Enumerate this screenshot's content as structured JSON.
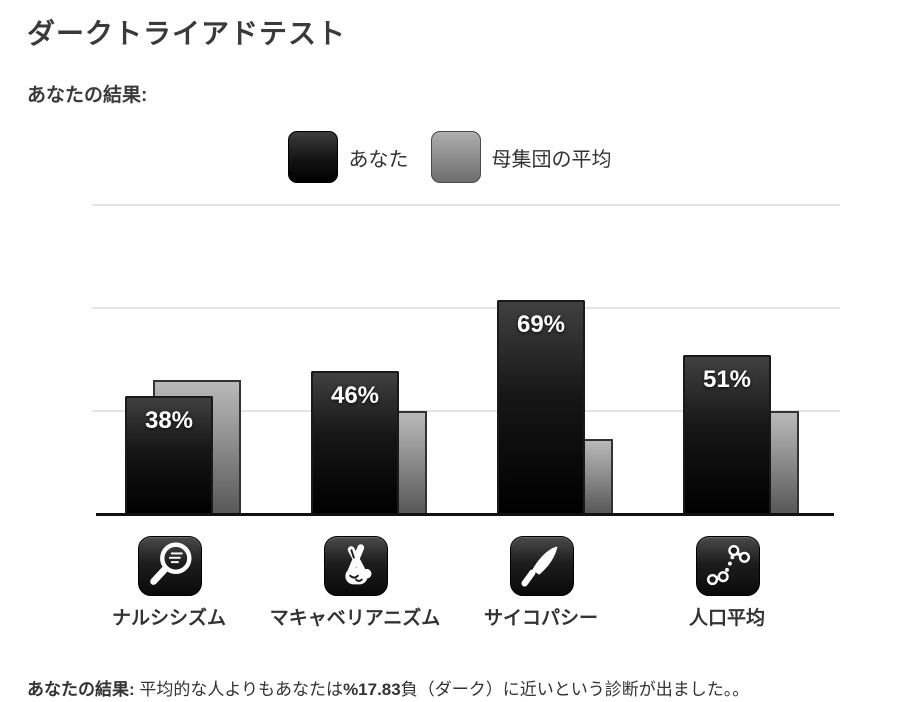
{
  "page": {
    "title": "ダークトライアドテスト",
    "subtitle": "あなたの結果:"
  },
  "legend": {
    "items": [
      {
        "label": "あなた",
        "swatch": "black-gradient"
      },
      {
        "label": "母集団の平均",
        "swatch": "gray-gradient"
      }
    ]
  },
  "chart_data": {
    "type": "bar",
    "categories": [
      "ナルシシズム",
      "マキャベリアニズム",
      "サイコパシー",
      "人口平均"
    ],
    "series": [
      {
        "name": "あなた",
        "values": [
          38,
          46,
          69,
          51
        ],
        "labels": [
          "38%",
          "46%",
          "69%",
          "51%"
        ],
        "color_top": "#404040",
        "color_bottom": "#000000"
      },
      {
        "name": "母集団の平均",
        "values": [
          43,
          33,
          24,
          33
        ],
        "color_top": "#b9b9b9",
        "color_bottom": "#585858"
      }
    ],
    "ylim": [
      0,
      100
    ],
    "gridlines": [
      33.3,
      66.7,
      100
    ],
    "grid": true,
    "legend_position": "top",
    "value_labels_on": "あなた",
    "icon_names": [
      "hand-mirror-icon",
      "crossed-fingers-icon",
      "knife-icon",
      "scatter-plot-icon"
    ]
  },
  "result": {
    "prefix_bold": "あなたの結果:",
    "text_1": " 平均的な人よりもあなたは",
    "value_bold": "%17.83",
    "text_2": "負（ダーク）に近いという診断が出ました。。"
  },
  "colors": {
    "heading_text": "#3a3a3a",
    "body_text": "#333333",
    "gridline": "#e4e4e4",
    "baseline": "#111111",
    "bar_label_text": "#ffffff"
  }
}
